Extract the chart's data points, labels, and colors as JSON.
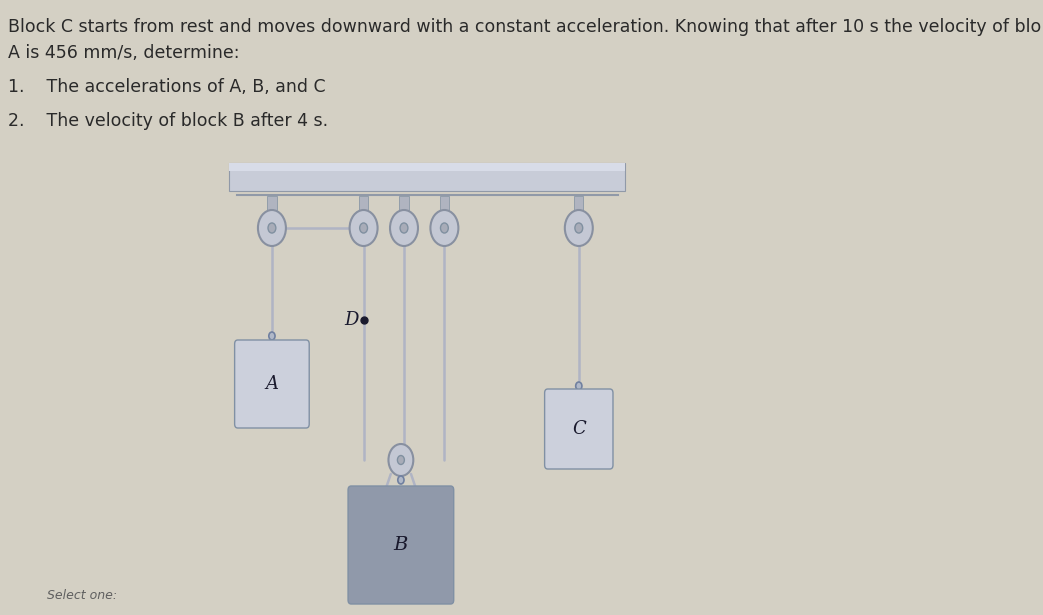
{
  "bg_color": "#d4d0c4",
  "bg_diagram_color": "#ddd8c8",
  "ceiling_color": "#c8ccd8",
  "ceiling_top_color": "#d0d4e0",
  "rope_color": "#b0b4c4",
  "block_A_color": "#ccd0dc",
  "block_B_color": "#9099aa",
  "block_C_color": "#ccd0dc",
  "pulley_outer_color": "#c4c8d4",
  "pulley_inner_color": "#a8acb8",
  "bracket_color": "#b0b4c0",
  "text_color": "#2a2a2a",
  "text_color2": "#3a3a4a",
  "select_color": "#606060",
  "title_line1": "Block C starts from rest and moves downward with a constant acceleration. Knowing that after 10 s the velocity of blo",
  "title_line2": "A is 456 mm/s, determine:",
  "item1": "1.    The accelerations of A, B, and C",
  "item2": "2.    The velocity of block B after 4 s.",
  "select_text": "Select one:",
  "label_A": "A",
  "label_B": "B",
  "label_C": "C",
  "label_D": "D"
}
